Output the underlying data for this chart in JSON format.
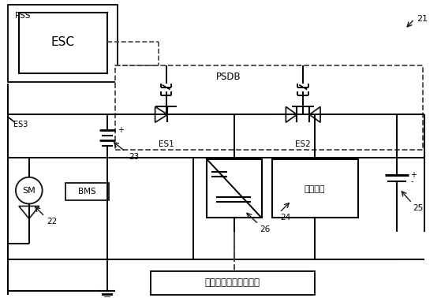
{
  "bg_color": "#ffffff",
  "line_color": "#1a1a1a",
  "dashed_color": "#444444",
  "fig_width": 5.59,
  "fig_height": 3.78,
  "labels": {
    "PSS": "PSS",
    "ESC": "ESC",
    "PSDB": "PSDB",
    "ES1": "ES1",
    "ES2": "ES2",
    "ES3": "ES3",
    "SM": "SM",
    "BMS": "BMS",
    "num21": "21",
    "num22": "22",
    "num23": "23",
    "num24": "24",
    "num25": "25",
    "num26": "26",
    "hybrid": "ハイブリッドシステム",
    "denki": "電気負荷"
  }
}
